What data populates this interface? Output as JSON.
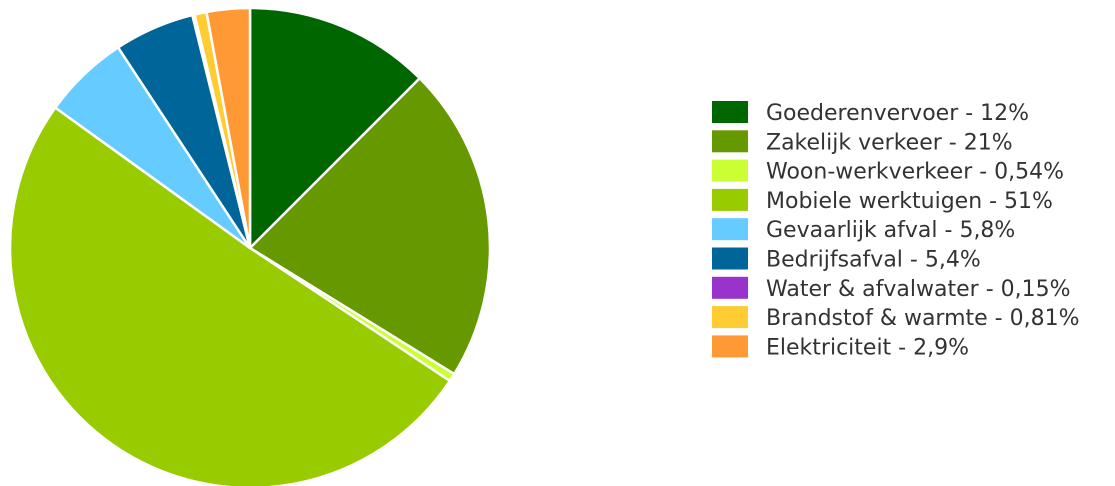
{
  "chart_data": {
    "type": "pie",
    "start_angle_deg": 0,
    "direction": "clockwise",
    "legend_placement": "right",
    "slices": [
      {
        "label": "Goederenvervoer - 12%",
        "value": 12.5,
        "color": "#006600"
      },
      {
        "label": "Zakelijk verkeer - 21%",
        "value": 21.3,
        "color": "#669900"
      },
      {
        "label": "Woon-werkverkeer - 0,54%",
        "value": 0.54,
        "color": "#CCFF33"
      },
      {
        "label": "Mobiele werktuigen - 51%",
        "value": 50.6,
        "color": "#99CC00"
      },
      {
        "label": "Gevaarlijk afval - 5,8%",
        "value": 5.8,
        "color": "#66CCFF"
      },
      {
        "label": "Bedrijfsafval - 5,4%",
        "value": 5.4,
        "color": "#006699"
      },
      {
        "label": "Water & afvalwater - 0,15%",
        "value": 0.15,
        "color": "#9933CC"
      },
      {
        "label": "Brandstof & warmte - 0,81%",
        "value": 0.81,
        "color": "#FFCC33"
      },
      {
        "label": "Elektriciteit - 2,9%",
        "value": 2.9,
        "color": "#FF9933"
      }
    ]
  }
}
